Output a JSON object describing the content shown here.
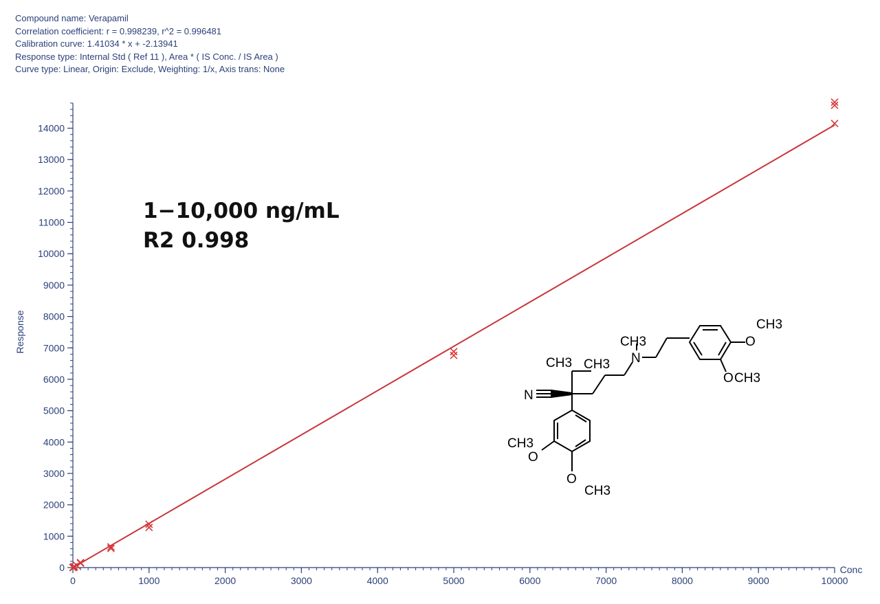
{
  "header": {
    "lines": [
      "Compound name: Verapamil",
      "Correlation coefficient: r = 0.998239, r^2 = 0.996481",
      "Calibration curve: 1.41034 * x + -2.13941",
      "Response type: Internal Std ( Ref 11 ), Area * ( IS Conc. / IS Area )",
      "Curve type: Linear, Origin: Exclude, Weighting: 1/x, Axis trans: None"
    ]
  },
  "annotation": {
    "range": "1−10,000 ng/mL",
    "r2": "R2 0.998"
  },
  "molecule": {
    "name": "Verapamil",
    "labels": [
      "N",
      "CH3",
      "CH3",
      "CH3",
      "N",
      "O",
      "CH3",
      "O",
      "CH3",
      "CH3",
      "O",
      "O",
      "CH3"
    ]
  },
  "colors": {
    "axis": "#2b3f7a",
    "data": "#d9383a",
    "fit_line": "#c8353a"
  },
  "chart_data": {
    "type": "scatter",
    "xlabel": "Conc",
    "ylabel": "Response",
    "xlim": [
      0,
      10000
    ],
    "ylim": [
      0,
      14800
    ],
    "x_ticks": [
      0,
      1000,
      2000,
      3000,
      4000,
      5000,
      6000,
      7000,
      8000,
      9000,
      10000
    ],
    "y_ticks": [
      0,
      1000,
      2000,
      3000,
      4000,
      5000,
      6000,
      7000,
      8000,
      9000,
      10000,
      11000,
      12000,
      13000,
      14000
    ],
    "fit": {
      "slope": 1.41034,
      "intercept": -2.13941
    },
    "series": [
      {
        "points": [
          {
            "x": 1,
            "y": 2
          },
          {
            "x": 2,
            "y": 4
          },
          {
            "x": 5,
            "y": 8
          },
          {
            "x": 10,
            "y": 14
          },
          {
            "x": 20,
            "y": 30
          },
          {
            "x": 50,
            "y": 70
          },
          {
            "x": 100,
            "y": 140
          },
          {
            "x": 100,
            "y": 160
          },
          {
            "x": 500,
            "y": 610
          },
          {
            "x": 500,
            "y": 660
          },
          {
            "x": 1000,
            "y": 1280
          },
          {
            "x": 1000,
            "y": 1380
          },
          {
            "x": 5000,
            "y": 6760
          },
          {
            "x": 5000,
            "y": 6880
          },
          {
            "x": 10000,
            "y": 14150
          },
          {
            "x": 10000,
            "y": 14730
          },
          {
            "x": 10000,
            "y": 14830
          }
        ]
      }
    ],
    "grid": false
  }
}
